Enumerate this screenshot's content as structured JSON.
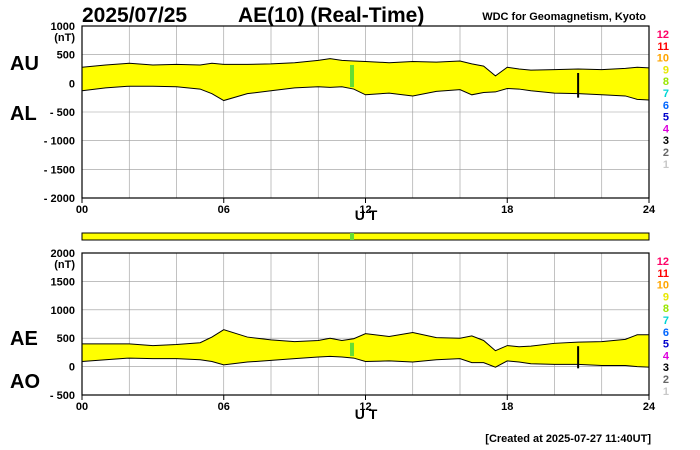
{
  "header": {
    "date": "2025/07/25",
    "title": "AE(10) (Real-Time)",
    "source": "WDC for Geomagnetism, Kyoto"
  },
  "footer": {
    "created": "[Created at 2025-07-27 11:40UT]"
  },
  "legend": [
    {
      "label": "12",
      "color": "#ff0066"
    },
    {
      "label": "11",
      "color": "#ff0000"
    },
    {
      "label": "10",
      "color": "#ffa500"
    },
    {
      "label": "9",
      "color": "#e8e800"
    },
    {
      "label": "8",
      "color": "#99e600"
    },
    {
      "label": "7",
      "color": "#00d5d5"
    },
    {
      "label": "6",
      "color": "#0066ff"
    },
    {
      "label": "5",
      "color": "#0000cc"
    },
    {
      "label": "4",
      "color": "#dd00dd"
    },
    {
      "label": "3",
      "color": "#000000"
    },
    {
      "label": "2",
      "color": "#666666"
    },
    {
      "label": "1",
      "color": "#c8c8c8"
    }
  ],
  "colors": {
    "fill": "#ffff00",
    "marker": "#66dd33",
    "grid": "#999999"
  },
  "chart_data": [
    {
      "type": "area",
      "name": "AU/AL",
      "series": [
        {
          "name": "AU"
        },
        {
          "name": "AL"
        }
      ],
      "xlabel": "U T",
      "ylabel": "(nT)",
      "xlim": [
        0,
        24
      ],
      "ylim": [
        -2000,
        1000
      ],
      "xticks": [
        "00",
        "06",
        "12",
        "18",
        "24"
      ],
      "yticks": [
        "1000",
        "500",
        "0",
        "- 500",
        "- 1000",
        "- 1500",
        "- 2000"
      ],
      "x": [
        0,
        1,
        2,
        3,
        4,
        5,
        5.5,
        6,
        7,
        8,
        9,
        10,
        10.5,
        11,
        11.5,
        12,
        13,
        14,
        15,
        16,
        16.5,
        17,
        17.5,
        18,
        18.5,
        19,
        20,
        21,
        22,
        23,
        23.5,
        24
      ],
      "upper": [
        280,
        320,
        350,
        320,
        330,
        320,
        350,
        330,
        330,
        340,
        360,
        400,
        430,
        400,
        390,
        380,
        360,
        380,
        370,
        390,
        340,
        300,
        130,
        280,
        250,
        230,
        240,
        250,
        240,
        260,
        280,
        270
      ],
      "lower": [
        -130,
        -80,
        -50,
        -50,
        -60,
        -100,
        -180,
        -300,
        -180,
        -130,
        -80,
        -60,
        -70,
        -60,
        -100,
        -200,
        -170,
        -220,
        -140,
        -110,
        -200,
        -160,
        -150,
        -90,
        -100,
        -130,
        -170,
        -180,
        -200,
        -220,
        -280,
        -290
      ]
    },
    {
      "type": "area",
      "name": "AE/AO",
      "series": [
        {
          "name": "AE"
        },
        {
          "name": "AO"
        }
      ],
      "xlabel": "U T",
      "ylabel": "(nT)",
      "xlim": [
        0,
        24
      ],
      "ylim": [
        -500,
        2000
      ],
      "xticks": [
        "00",
        "06",
        "12",
        "18",
        "24"
      ],
      "yticks": [
        "2000",
        "1500",
        "1000",
        "500",
        "0",
        "- 500"
      ],
      "x": [
        0,
        1,
        2,
        3,
        4,
        5,
        5.5,
        6,
        7,
        8,
        9,
        10,
        10.5,
        11,
        11.5,
        12,
        13,
        14,
        15,
        16,
        16.5,
        17,
        17.5,
        18,
        18.5,
        19,
        20,
        21,
        22,
        23,
        23.5,
        24
      ],
      "upper": [
        400,
        400,
        400,
        370,
        390,
        420,
        520,
        650,
        520,
        470,
        440,
        460,
        500,
        460,
        490,
        580,
        530,
        600,
        510,
        500,
        540,
        460,
        280,
        370,
        350,
        360,
        410,
        430,
        440,
        480,
        560,
        560
      ],
      "lower": [
        90,
        120,
        150,
        140,
        140,
        120,
        90,
        30,
        80,
        110,
        140,
        170,
        180,
        170,
        150,
        90,
        100,
        80,
        120,
        140,
        70,
        70,
        -10,
        100,
        80,
        50,
        40,
        40,
        20,
        20,
        0,
        -10
      ]
    }
  ],
  "big_labels": {
    "au": "AU",
    "al": "AL",
    "ae": "AE",
    "ao": "AO"
  }
}
